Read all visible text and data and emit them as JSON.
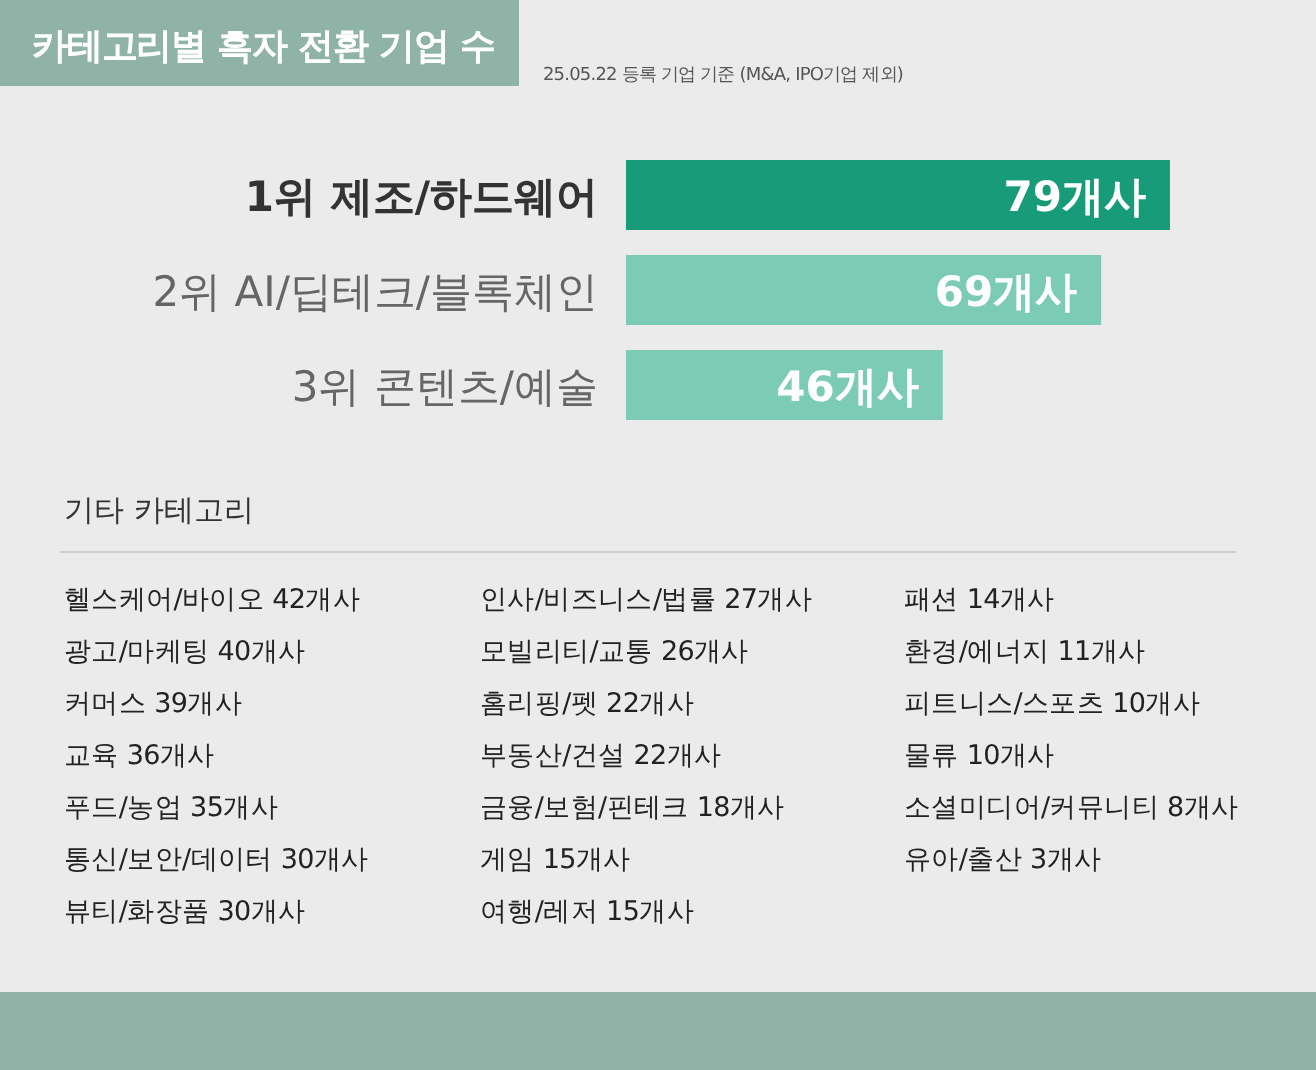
{
  "chart_data": [
    {
      "type": "bar",
      "orientation": "horizontal",
      "title": "카테고리별 흑자 전환 기업 수",
      "subtitle": "25.05.22 등록 기업 기준 (M&A, IPO기업 제외)",
      "categories": [
        "1위 제조/하드웨어",
        "2위 AI/딥테크/블록체인",
        "3위 콘텐츠/예술"
      ],
      "values": [
        79,
        69,
        46
      ],
      "colors": [
        "#179b78",
        "#7ccbb5",
        "#7ccbb5"
      ],
      "value_labels": [
        "79개사",
        "69개사",
        "46개사"
      ]
    },
    {
      "type": "other",
      "title": "기타 카테고리",
      "annotations": [
        "헬스케어/바이오 42개사",
        "광고/마케팅 40개사",
        "커머스 39개사",
        "교육 36개사",
        "푸드/농업 35개사",
        "통신/보안/데이터 30개사",
        "뷰티/화장품 30개사",
        "인사/비즈니스/법률 27개사",
        "모빌리티/교통 26개사",
        "홈리핑/펫 22개사",
        "부동산/건설 22개사",
        "금융/보험/핀테크 18개사",
        "게임 15개사",
        "여행/레저 15개사",
        "패션 14개사",
        "환경/에너지 11개사",
        "피트니스/스포츠 10개사",
        "물류 10개사",
        "소셜미디어/커뮤니티 8개사",
        "유아/출산 3개사"
      ]
    }
  ]
}
